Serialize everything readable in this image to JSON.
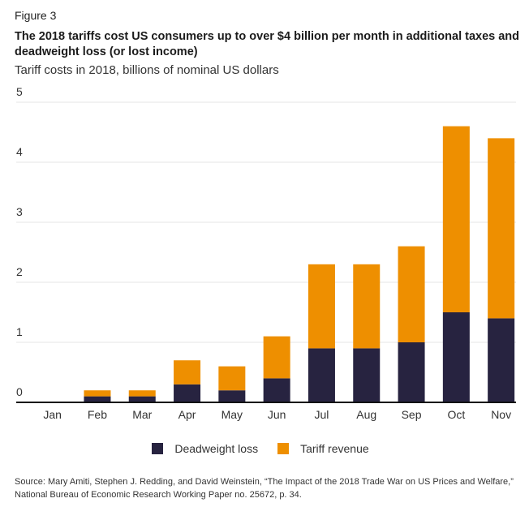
{
  "figure_label": "Figure 3",
  "title": "The 2018 tariffs cost US consumers up to over $4 billion per month in additional taxes and deadweight loss (or lost income)",
  "subtitle": "Tariff costs in 2018, billions of nominal US dollars",
  "source": "Source: Mary Amiti, Stephen J. Redding, and David Weinstein, “The Impact of the 2018 Trade War on US Prices and Welfare,” National Bureau of Economic Research Working Paper no. 25672, p. 34.",
  "colors": {
    "deadweight": "#272340",
    "tariff": "#EE8F00",
    "grid": "#e6e6e6",
    "axis": "#111111"
  },
  "chart_data": {
    "type": "bar",
    "stacked": true,
    "title": "The 2018 tariffs cost US consumers up to over $4 billion per month in additional taxes and deadweight loss (or lost income)",
    "subtitle": "Tariff costs in 2018, billions of nominal US dollars",
    "xlabel": "",
    "ylabel": "",
    "categories": [
      "Jan",
      "Feb",
      "Mar",
      "Apr",
      "May",
      "Jun",
      "Jul",
      "Aug",
      "Sep",
      "Oct",
      "Nov"
    ],
    "series": [
      {
        "name": "Deadweight loss",
        "values": [
          0,
          0.1,
          0.1,
          0.3,
          0.2,
          0.4,
          0.9,
          0.9,
          1.0,
          1.5,
          1.4
        ]
      },
      {
        "name": "Tariff revenue",
        "values": [
          0,
          0.1,
          0.1,
          0.4,
          0.4,
          0.7,
          1.4,
          1.4,
          1.6,
          3.1,
          3.0
        ]
      }
    ],
    "ylim": [
      0,
      5
    ],
    "yticks": [
      "0",
      "1",
      "2",
      "3",
      "4",
      "5"
    ],
    "grid": true,
    "legend_position": "bottom-center"
  }
}
